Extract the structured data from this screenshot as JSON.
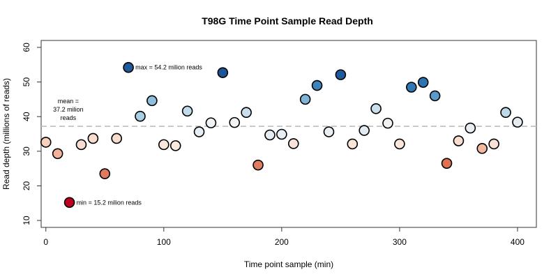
{
  "chart_data": {
    "type": "scatter",
    "title": "T98G Time Point Sample Read Depth",
    "xlabel": "Time point sample (min)",
    "ylabel": "Read depth (millions of reads)",
    "xlim": [
      -4,
      416
    ],
    "ylim": [
      8,
      62
    ],
    "xticks": [
      0,
      100,
      200,
      300,
      400
    ],
    "yticks": [
      10,
      20,
      30,
      40,
      50,
      60
    ],
    "grid": false,
    "x": [
      0,
      10,
      20,
      30,
      40,
      50,
      60,
      70,
      80,
      90,
      100,
      110,
      120,
      130,
      140,
      150,
      160,
      170,
      180,
      190,
      200,
      210,
      220,
      230,
      240,
      250,
      260,
      270,
      280,
      290,
      300,
      310,
      320,
      330,
      340,
      350,
      360,
      370,
      380,
      390,
      400
    ],
    "y": [
      32.6,
      29.3,
      15.2,
      31.9,
      33.7,
      23.5,
      33.7,
      54.2,
      40.1,
      44.6,
      31.9,
      31.6,
      41.6,
      35.6,
      38.2,
      52.7,
      38.3,
      41.2,
      26.0,
      34.7,
      34.9,
      32.2,
      45.0,
      49.0,
      35.6,
      52.1,
      32.1,
      36.0,
      42.3,
      38.1,
      32.1,
      48.5,
      49.9,
      46.0,
      26.5,
      33.0,
      36.7,
      30.8,
      32.1,
      41.2,
      38.4
    ],
    "colors": [
      "#f7d0bc",
      "#f2b39a",
      "#c0001f",
      "#f7ddd0",
      "#f8dccf",
      "#e07a5e",
      "#f7dbcd",
      "#1f5b9c",
      "#a9cfe3",
      "#8fbfdc",
      "#fae6db",
      "#fbe8de",
      "#c2dbea",
      "#e6eef4",
      "#eef3f6",
      "#1c5596",
      "#f2f4f6",
      "#c8deec",
      "#e07d60",
      "#e4edf3",
      "#e7eff4",
      "#f9e3d8",
      "#7fb4d6",
      "#3f83ba",
      "#e9f0f4",
      "#1f5b9c",
      "#fae5da",
      "#e2ebf2",
      "#c9dfec",
      "#f0f3f6",
      "#fae6db",
      "#3078b3",
      "#2d73b0",
      "#5c9bc9",
      "#e0714f",
      "#f8ddd0",
      "#e8eef3",
      "#f2b79d",
      "#f9e1d5",
      "#bdd8e9",
      "#e4ecf2"
    ],
    "mean": 37.2,
    "annotations": {
      "max": "max = 54.2 milion reads",
      "min": "min = 15.2 milion reads",
      "mean_line1": "mean =",
      "mean_line2": "37.2 milion",
      "mean_line3": "reads"
    }
  }
}
